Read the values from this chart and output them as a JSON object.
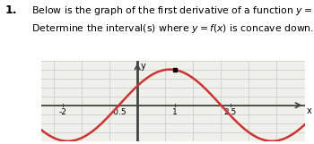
{
  "title_number": "1.",
  "title_line1": "Below is the graph of the first derivative of a function $y = f(x)$.",
  "title_line2": "Determine the interval(s) where $y = f(x)$ is concave down.    Explain",
  "x_ticks": [
    -2,
    -0.5,
    1,
    2.5
  ],
  "x_tick_labels": [
    "-2",
    "-0.5",
    "1",
    "2.5"
  ],
  "curve_color": "#cc3333",
  "axis_color": "#444444",
  "grid_color": "#c8c8c8",
  "background_color": "#f0f0eb",
  "xlim": [
    -2.6,
    4.5
  ],
  "ylim": [
    -2.0,
    2.5
  ],
  "dot_x": 1.0,
  "xlabel": "x",
  "ylabel": "y",
  "curve_amplitude": 2.8,
  "curve_omega": 1.5707963,
  "curve_phase": 0.5,
  "text_fontsize": 7.8,
  "num_fontsize": 9.0,
  "tick_fontsize": 6.5
}
